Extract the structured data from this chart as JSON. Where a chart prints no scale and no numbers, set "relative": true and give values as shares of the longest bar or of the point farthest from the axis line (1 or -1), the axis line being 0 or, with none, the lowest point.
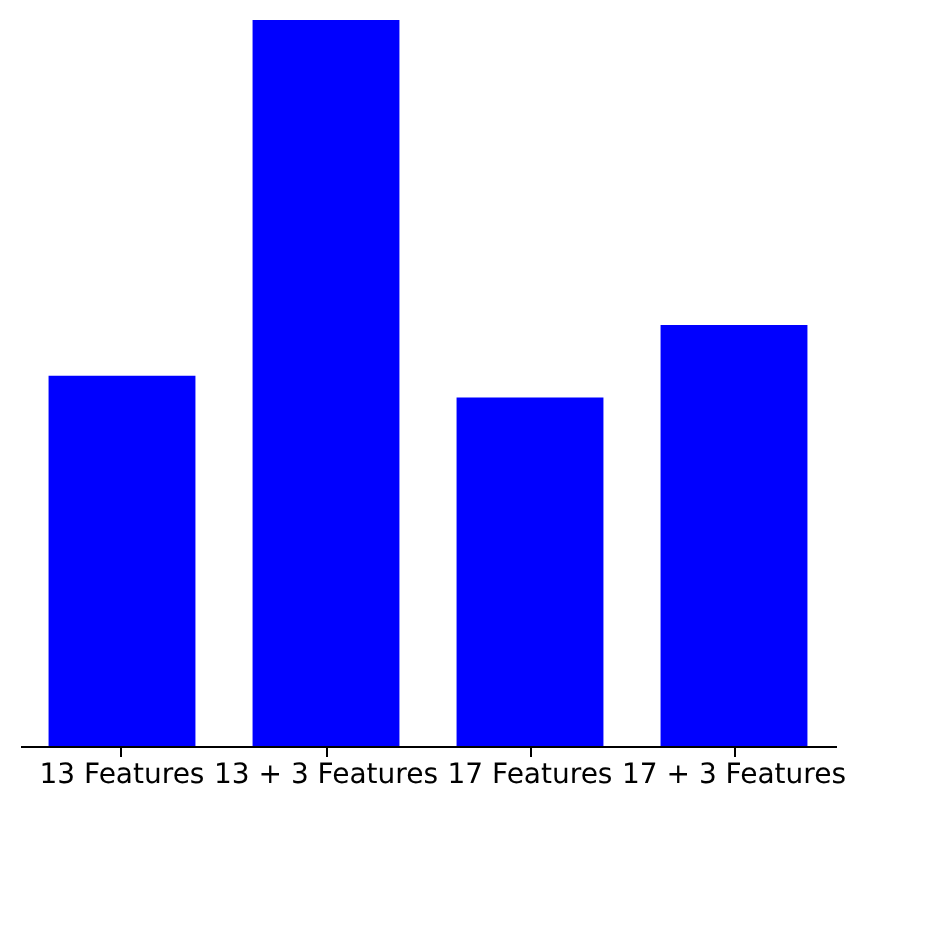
{
  "chart_data": {
    "type": "bar",
    "relative": true,
    "categories": [
      "13 Features",
      "13 + 3 Features",
      "17 Features",
      "17 + 3 Features"
    ],
    "series": [
      {
        "color": "#0000ff",
        "values": [
          0.51,
          1,
          0.48,
          0.58
        ]
      }
    ]
  }
}
